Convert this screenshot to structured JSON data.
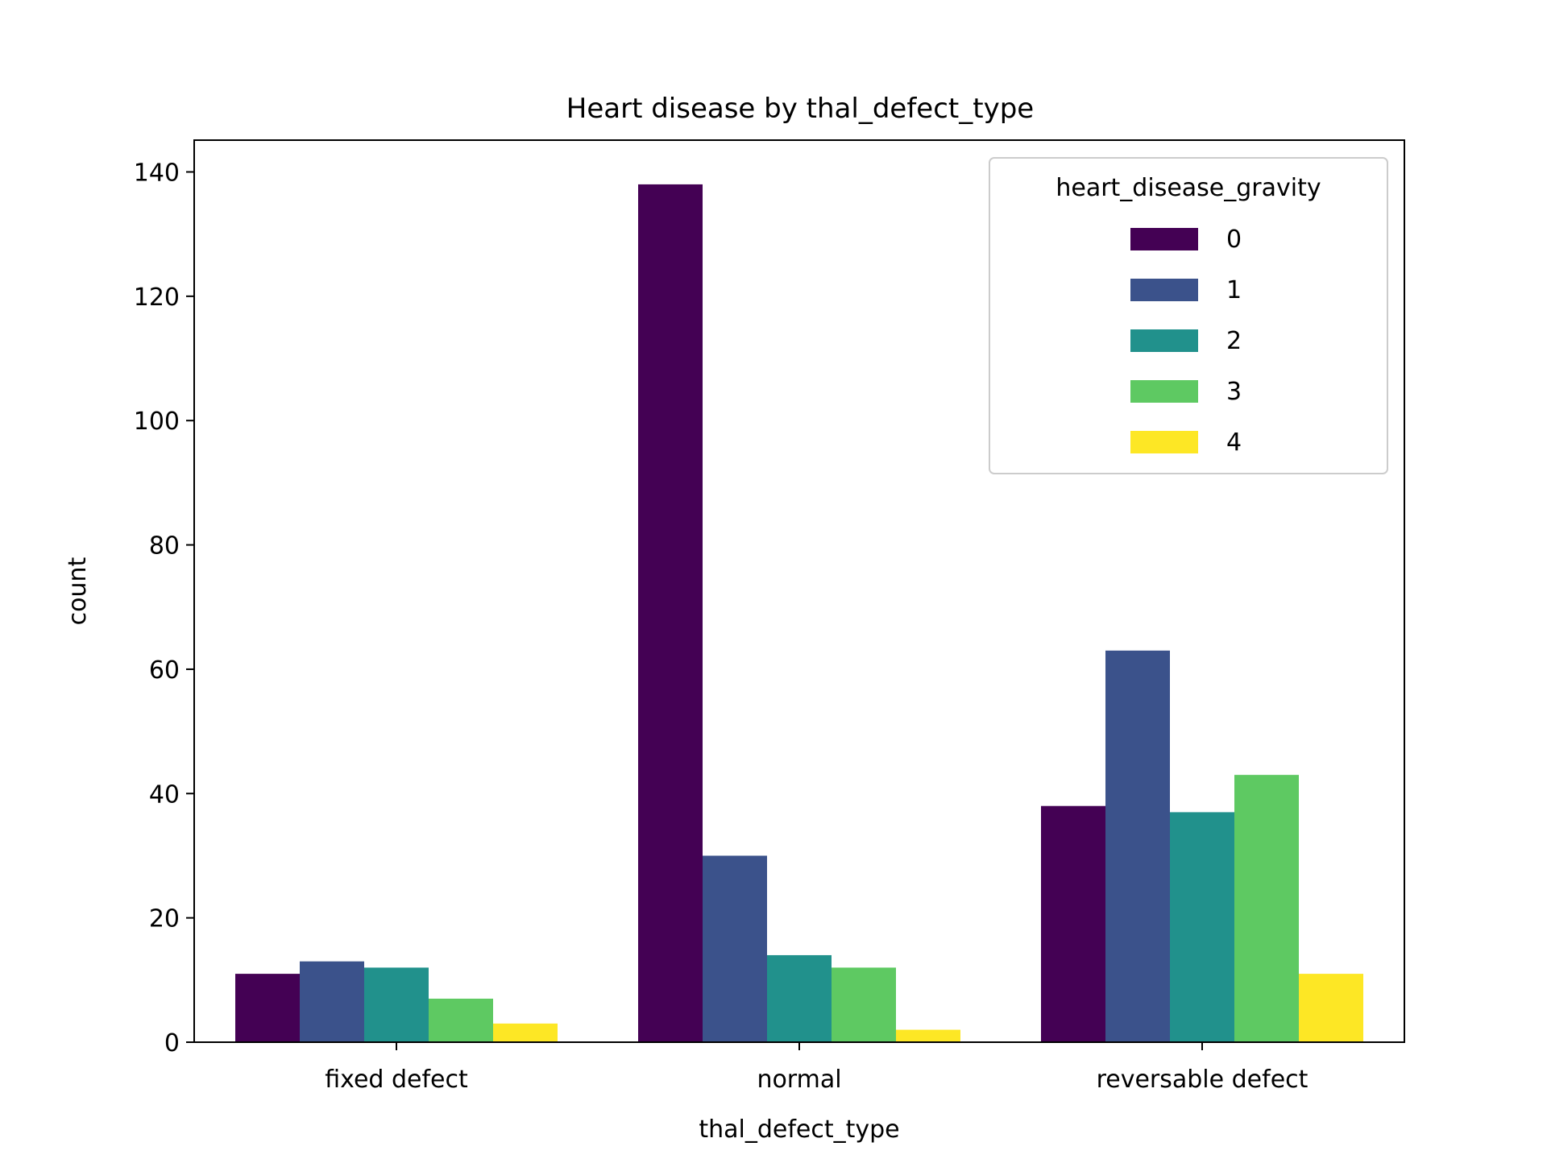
{
  "chart_data": {
    "type": "bar",
    "title": "Heart disease by thal_defect_type",
    "xlabel": "thal_defect_type",
    "ylabel": "count",
    "categories": [
      "fixed defect",
      "normal",
      "reversable defect"
    ],
    "ylim": [
      0,
      145
    ],
    "yticks": [
      0,
      20,
      40,
      60,
      80,
      100,
      120,
      140
    ],
    "grid": false,
    "legend": {
      "title": "heart_disease_gravity",
      "placement": "top-right"
    },
    "series": [
      {
        "name": "0",
        "color": "#440154",
        "values": [
          11,
          138,
          38
        ]
      },
      {
        "name": "1",
        "color": "#3b528b",
        "values": [
          13,
          30,
          63
        ]
      },
      {
        "name": "2",
        "color": "#21918c",
        "values": [
          12,
          14,
          37
        ]
      },
      {
        "name": "3",
        "color": "#5ec962",
        "values": [
          7,
          12,
          43
        ]
      },
      {
        "name": "4",
        "color": "#fde725",
        "values": [
          3,
          2,
          11
        ]
      }
    ]
  }
}
